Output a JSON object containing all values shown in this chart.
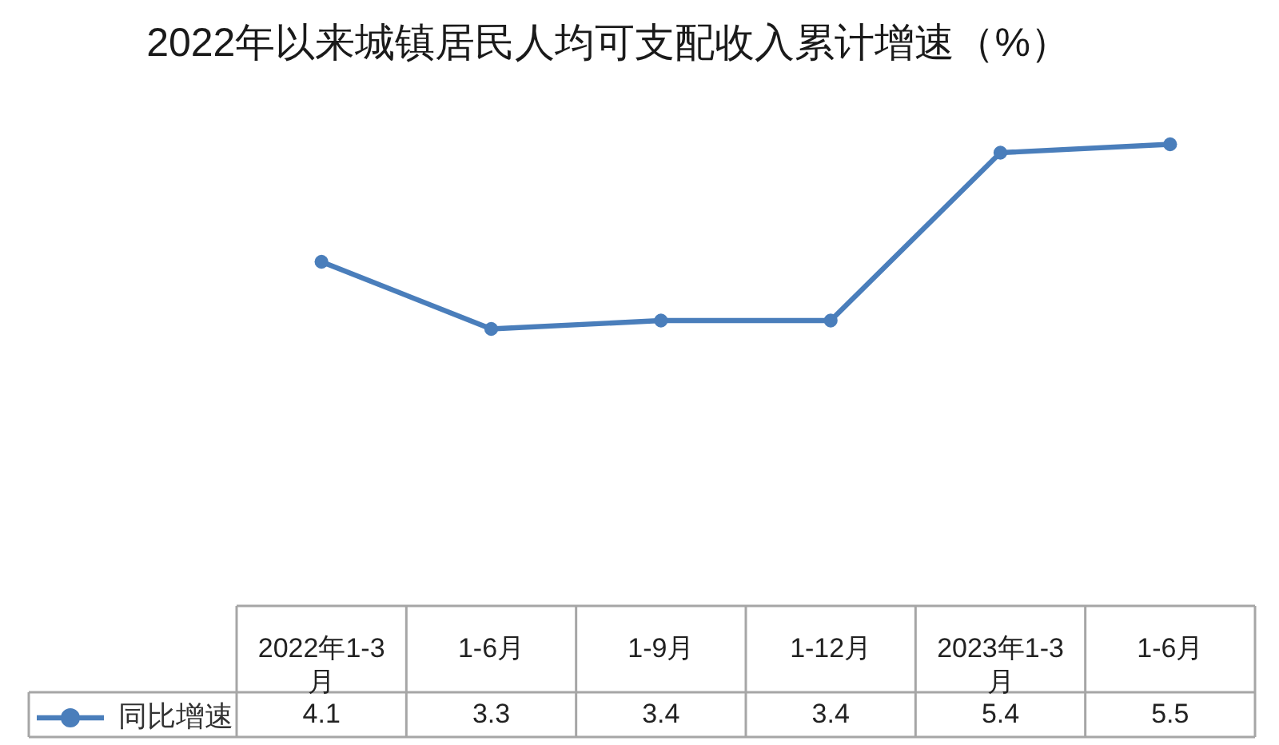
{
  "chart_data": {
    "type": "line",
    "title": "2022年以来城镇居民人均可支配收入累计增速（%）",
    "categories": [
      "2022年1-3月",
      "1-6月",
      "1-9月",
      "1-12月",
      "2023年1-3月",
      "1-6月"
    ],
    "series": [
      {
        "name": "同比增速",
        "color": "#4a7ebb",
        "values": [
          4.1,
          3.3,
          3.4,
          3.4,
          5.4,
          5.5
        ]
      }
    ],
    "marker": "circle",
    "legend": "bottom left",
    "data_labels": true
  }
}
